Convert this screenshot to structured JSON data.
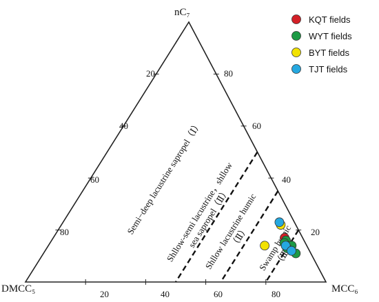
{
  "chart_data": {
    "type": "scatter",
    "subtype": "ternary",
    "vertices": {
      "top": "nC₇",
      "left": "DMCC₅",
      "right": "MCC₆"
    },
    "axis_ticks": {
      "bottom": [
        "20",
        "40",
        "60",
        "80"
      ],
      "left": [
        "20",
        "40",
        "60",
        "80"
      ],
      "right": [
        "80",
        "60",
        "40",
        "20"
      ]
    },
    "tick_values": [
      20,
      40,
      60,
      80
    ],
    "zones": [
      {
        "label": "Semi−deep lacustrine sapropel（Ⅰ）",
        "boundary_right_mcc6": 50
      },
      {
        "label_lines": [
          "Shllow-semi lacustrine，shllow",
          "sea sapropel（Ⅱ）"
        ],
        "boundary_right_mcc6": 65
      },
      {
        "label_lines": [
          "Shllow lacustrine humic",
          "（Ⅱ）"
        ],
        "boundary_right_mcc6": 80
      },
      {
        "label_lines": [
          "Swamp humic",
          "（Ⅲ）"
        ]
      }
    ],
    "series": [
      {
        "name": "KQT fields",
        "color": "#d42027",
        "points": [
          {
            "nc7": 17,
            "mcc6": 77
          },
          {
            "nc7": 14,
            "mcc6": 79
          }
        ]
      },
      {
        "name": "WYT fields",
        "color": "#1d9a45",
        "points": [
          {
            "nc7": 16,
            "mcc6": 78
          },
          {
            "nc7": 14,
            "mcc6": 81
          },
          {
            "nc7": 12,
            "mcc6": 82
          },
          {
            "nc7": 13,
            "mcc6": 80
          },
          {
            "nc7": 15,
            "mcc6": 78
          },
          {
            "nc7": 11,
            "mcc6": 84
          }
        ]
      },
      {
        "name": "BYT fields",
        "color": "#f2e200",
        "points": [
          {
            "nc7": 22,
            "mcc6": 73
          },
          {
            "nc7": 14,
            "mcc6": 72
          }
        ]
      },
      {
        "name": "TJT fields",
        "color": "#25a8e0",
        "points": [
          {
            "nc7": 23,
            "mcc6": 72
          },
          {
            "nc7": 14,
            "mcc6": 79
          },
          {
            "nc7": 12,
            "mcc6": 82
          }
        ]
      }
    ],
    "legend_position": "top-right"
  }
}
